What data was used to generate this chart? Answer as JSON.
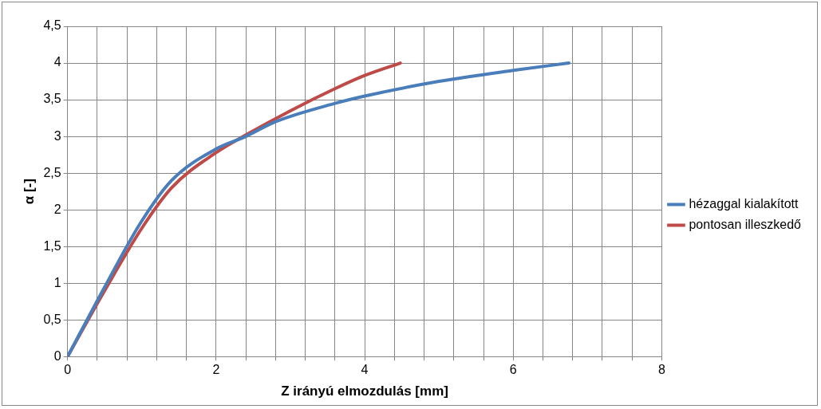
{
  "chart_data": {
    "type": "line",
    "xlabel": "Z irányú elmozdulás [mm]",
    "ylabel": "α [-]",
    "xlim": [
      0,
      8
    ],
    "ylim": [
      0,
      4.5
    ],
    "xticks": [
      0,
      {
        "value": 0.4,
        "label": null
      },
      {
        "value": 0.8,
        "label": null
      },
      {
        "value": 1.2,
        "label": null
      },
      {
        "value": 1.6,
        "label": null
      },
      2,
      {
        "value": 2.4,
        "label": null
      },
      {
        "value": 2.8,
        "label": null
      },
      {
        "value": 3.2,
        "label": null
      },
      {
        "value": 3.6,
        "label": null
      },
      4,
      {
        "value": 4.4,
        "label": null
      },
      {
        "value": 4.8,
        "label": null
      },
      {
        "value": 5.2,
        "label": null
      },
      {
        "value": 5.6,
        "label": null
      },
      6,
      {
        "value": 6.4,
        "label": null
      },
      {
        "value": 6.8,
        "label": null
      },
      {
        "value": 7.2,
        "label": null
      },
      {
        "value": 7.6,
        "label": null
      },
      8
    ],
    "yticks": [
      0,
      {
        "value": 0.5,
        "label": "0,5"
      },
      1,
      {
        "value": 1.5,
        "label": "1,5"
      },
      2,
      {
        "value": 2.5,
        "label": "2,5"
      },
      3,
      {
        "value": 3.5,
        "label": "3,5"
      },
      4,
      {
        "value": 4.5,
        "label": "4,5"
      }
    ],
    "grid": true,
    "legend": "right",
    "marker": "none",
    "line_style": "solid",
    "series": [
      {
        "name": "hézaggal kialakított",
        "color": "#4a7ebb",
        "x": [
          0,
          0.5,
          1.0,
          1.4,
          2.0,
          2.4,
          2.8,
          3.6,
          4.0,
          5.0,
          6.0,
          6.75
        ],
        "values": [
          0,
          0.95,
          1.85,
          2.4,
          2.83,
          3.0,
          3.2,
          3.45,
          3.55,
          3.75,
          3.9,
          4.0
        ]
      },
      {
        "name": "pontosan illeszkedő",
        "color": "#be4b48",
        "x": [
          0,
          0.5,
          1.0,
          1.4,
          2.0,
          2.4,
          3.0,
          3.6,
          4.0,
          4.48
        ],
        "values": [
          0,
          0.9,
          1.75,
          2.3,
          2.78,
          3.02,
          3.35,
          3.65,
          3.83,
          4.0
        ]
      }
    ]
  }
}
